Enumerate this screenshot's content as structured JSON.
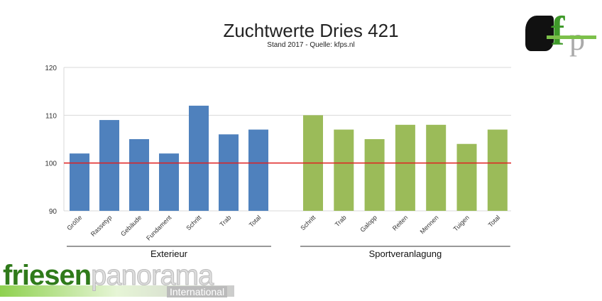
{
  "chart_data": {
    "type": "bar",
    "title": "Zuchtwerte Dries 421",
    "subtitle": "Stand 2017 - Quelle: kfps.nl",
    "ylim": [
      90,
      120
    ],
    "yticks": [
      "90",
      "100",
      "110",
      "120"
    ],
    "reference_line": 100,
    "groups": [
      {
        "name": "Exterieur",
        "color": "#4f81bd",
        "categories": [
          "Größe",
          "Rassetyp",
          "Gebäude",
          "Fundament",
          "Schritt",
          "Trab",
          "Total"
        ],
        "values": [
          102,
          109,
          105,
          102,
          112,
          106,
          107
        ]
      },
      {
        "name": "Sportveranlagung",
        "color": "#9bbb59",
        "categories": [
          "Schritt",
          "Trab",
          "Galopp",
          "Reiten",
          "Mennen",
          "Tuigen",
          "Total"
        ],
        "values": [
          110,
          107,
          105,
          108,
          108,
          104,
          107
        ]
      }
    ],
    "colors": {
      "reference": "#e02020",
      "grid": "#d9d9d9"
    }
  },
  "logo": {
    "part1": "friesen",
    "part2": "panorama",
    "sub": "International",
    "corner": "kfp"
  }
}
